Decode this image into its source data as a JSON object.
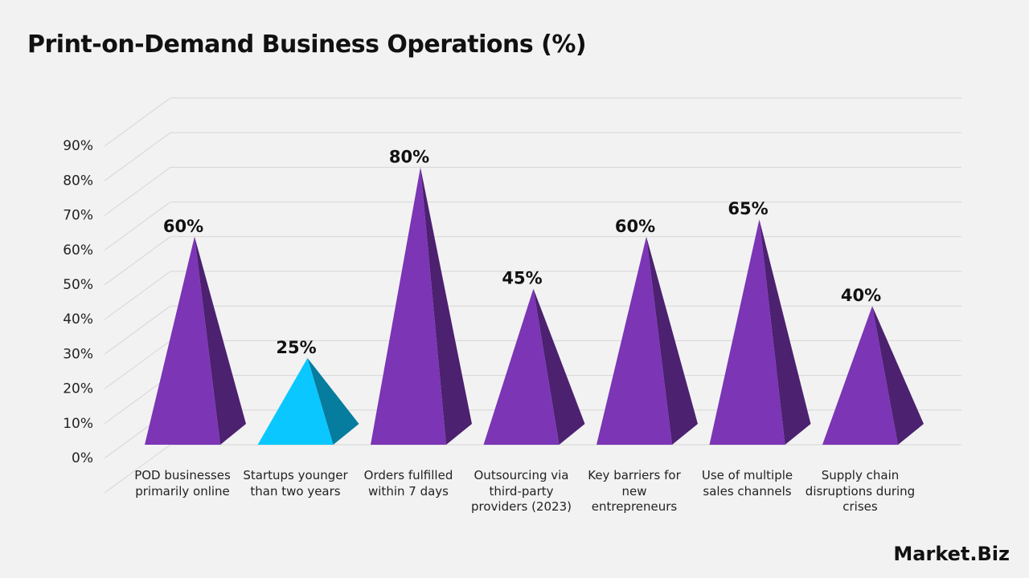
{
  "chart_data": {
    "type": "pyramid",
    "title": "Print-on-Demand Business Operations (%)",
    "categories": [
      "POD businesses primarily online",
      "Startups younger than two years",
      "Orders fulfilled within 7 days",
      "Outsourcing via third-party providers (2023)",
      "Key barriers for new entrepreneurs",
      "Use of multiple sales channels",
      "Supply chain disruptions during crises"
    ],
    "values": [
      60,
      25,
      80,
      45,
      60,
      65,
      40
    ],
    "value_labels": [
      "60%",
      "25%",
      "80%",
      "45%",
      "60%",
      "65%",
      "40%"
    ],
    "colors": [
      "#7b35b5",
      "#0ac8ff",
      "#7b35b5",
      "#7b35b5",
      "#7b35b5",
      "#7b35b5",
      "#7b35b5"
    ],
    "ylim": [
      0,
      100
    ],
    "yticks": [
      {
        "value": 0,
        "label": "0%"
      },
      {
        "value": 10,
        "label": "10%"
      },
      {
        "value": 20,
        "label": "20%"
      },
      {
        "value": 30,
        "label": "30%"
      },
      {
        "value": 40,
        "label": "40%"
      },
      {
        "value": 50,
        "label": "50%"
      },
      {
        "value": 60,
        "label": "60%"
      },
      {
        "value": 70,
        "label": "70%"
      },
      {
        "value": 80,
        "label": "80%"
      },
      {
        "value": 90,
        "label": "90%"
      }
    ],
    "grid": true
  },
  "logo": "Market.Biz"
}
